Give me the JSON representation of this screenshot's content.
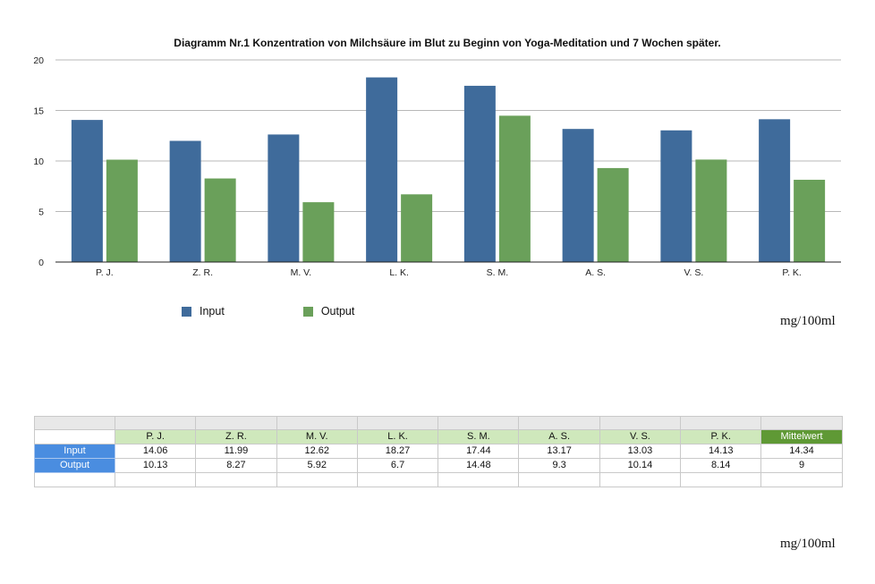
{
  "chart_data": {
    "type": "bar",
    "title": "Diagramm Nr.1 Konzentration von Milchsäure im Blut zu Beginn von Yoga-Meditation und 7 Wochen später.",
    "categories": [
      "P. J.",
      "Z. R.",
      "M. V.",
      "L. K.",
      "S. M.",
      "A. S.",
      "V. S.",
      "P. K."
    ],
    "series": [
      {
        "name": "Input",
        "color": "#3f6b9b",
        "values": [
          14.06,
          11.99,
          12.62,
          18.27,
          17.44,
          13.17,
          13.03,
          14.13
        ]
      },
      {
        "name": "Output",
        "color": "#6aa05a",
        "values": [
          10.13,
          8.27,
          5.92,
          6.7,
          14.48,
          9.3,
          10.14,
          8.14
        ]
      }
    ],
    "ylim": [
      0,
      20
    ],
    "yticks": [
      "0",
      "5",
      "10",
      "15",
      "20"
    ],
    "grid": true,
    "legend_position": "bottom-left"
  },
  "unit_label": "mg/100ml",
  "unit_label_bottom": "mg/100ml",
  "table": {
    "columns": [
      "P. J.",
      "Z. R.",
      "M. V.",
      "L. K.",
      "S. M.",
      "A. S.",
      "V. S.",
      "P. K."
    ],
    "mean_header": "Mittelwert",
    "rows": [
      {
        "label": "Input",
        "values": [
          "14.06",
          "11.99",
          "12.62",
          "18.27",
          "17.44",
          "13.17",
          "13.03",
          "14.13"
        ],
        "mean": "14.34"
      },
      {
        "label": "Output",
        "values": [
          "10.13",
          "8.27",
          "5.92",
          "6.7",
          "14.48",
          "9.3",
          "10.14",
          "8.14"
        ],
        "mean": "9"
      }
    ]
  }
}
